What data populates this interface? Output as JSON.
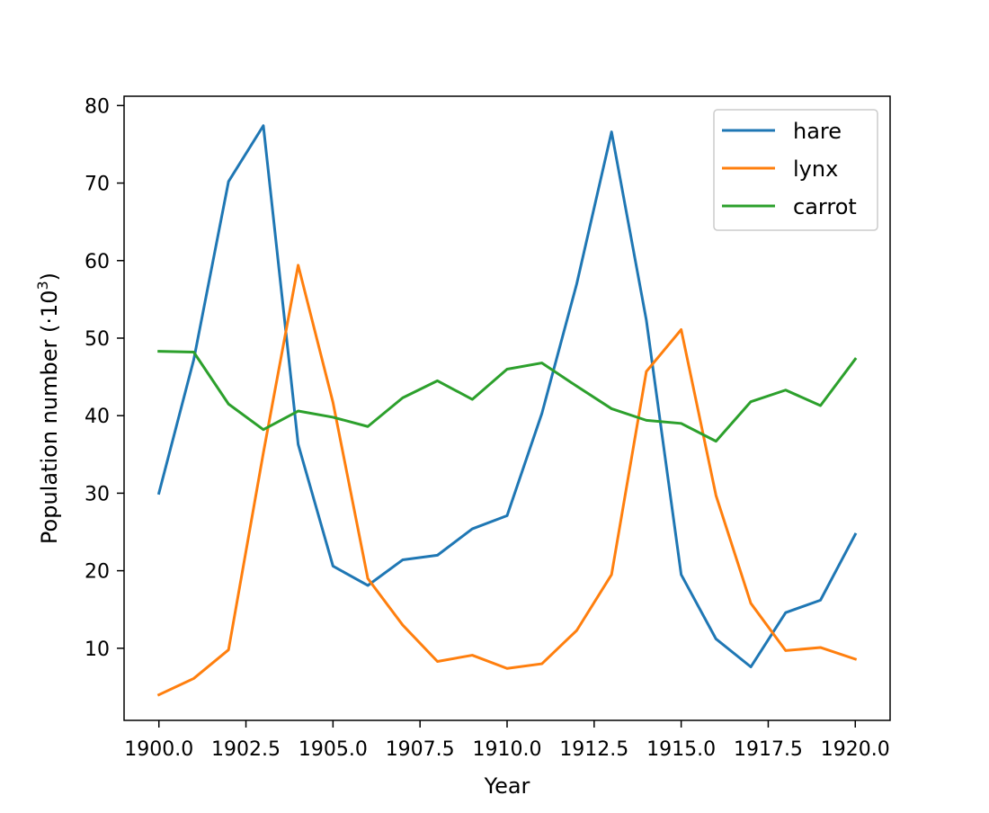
{
  "chart_data": {
    "type": "line",
    "title": "",
    "xlabel": "Year",
    "ylabel": {
      "main": "Population number (·10",
      "superscript": "3",
      "suffix": ")"
    },
    "xlim": [
      1899.0,
      1921.0
    ],
    "ylim": [
      0.7,
      81.2
    ],
    "grid": false,
    "legend_position": "top-right",
    "x_ticks": [
      1900.0,
      1902.5,
      1905.0,
      1907.5,
      1910.0,
      1912.5,
      1915.0,
      1917.5,
      1920.0
    ],
    "x_tick_labels": [
      "1900.0",
      "1902.5",
      "1905.0",
      "1907.5",
      "1910.0",
      "1912.5",
      "1915.0",
      "1917.5",
      "1920.0"
    ],
    "y_ticks": [
      10,
      20,
      30,
      40,
      50,
      60,
      70,
      80
    ],
    "y_tick_labels": [
      "10",
      "20",
      "30",
      "40",
      "50",
      "60",
      "70",
      "80"
    ],
    "x": [
      1900,
      1901,
      1902,
      1903,
      1904,
      1905,
      1906,
      1907,
      1908,
      1909,
      1910,
      1911,
      1912,
      1913,
      1914,
      1915,
      1916,
      1917,
      1918,
      1919,
      1920
    ],
    "series": [
      {
        "name": "hare",
        "color": "#1f77b4",
        "values": [
          30.0,
          47.2,
          70.2,
          77.4,
          36.3,
          20.6,
          18.1,
          21.4,
          22.0,
          25.4,
          27.1,
          40.3,
          57.0,
          76.6,
          52.3,
          19.5,
          11.2,
          7.6,
          14.6,
          16.2,
          24.7
        ]
      },
      {
        "name": "lynx",
        "color": "#ff7f0e",
        "values": [
          4.0,
          6.1,
          9.8,
          35.2,
          59.4,
          41.7,
          19.0,
          13.0,
          8.3,
          9.1,
          7.4,
          8.0,
          12.3,
          19.5,
          45.7,
          51.1,
          29.7,
          15.8,
          9.7,
          10.1,
          8.6
        ]
      },
      {
        "name": "carrot",
        "color": "#2ca02c",
        "values": [
          48.3,
          48.2,
          41.5,
          38.2,
          40.6,
          39.8,
          38.6,
          42.3,
          44.5,
          42.1,
          46.0,
          46.8,
          43.8,
          40.9,
          39.4,
          39.0,
          36.7,
          41.8,
          43.3,
          41.3,
          47.3
        ]
      }
    ]
  }
}
